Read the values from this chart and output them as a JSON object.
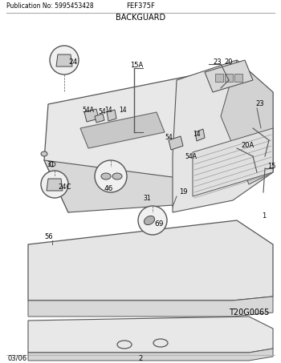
{
  "title_left": "Publication No: 5995453428",
  "title_center": "FEF375F",
  "section_title": "BACKGUARD",
  "image_id": "T20G0065",
  "footer_left": "03/06",
  "footer_center": "2",
  "bg_color": "#ffffff",
  "border_color": "#000000",
  "line_color": "#555555",
  "text_color": "#000000",
  "part_color": "#888888",
  "figsize": [
    3.5,
    4.53
  ],
  "dpi": 100
}
